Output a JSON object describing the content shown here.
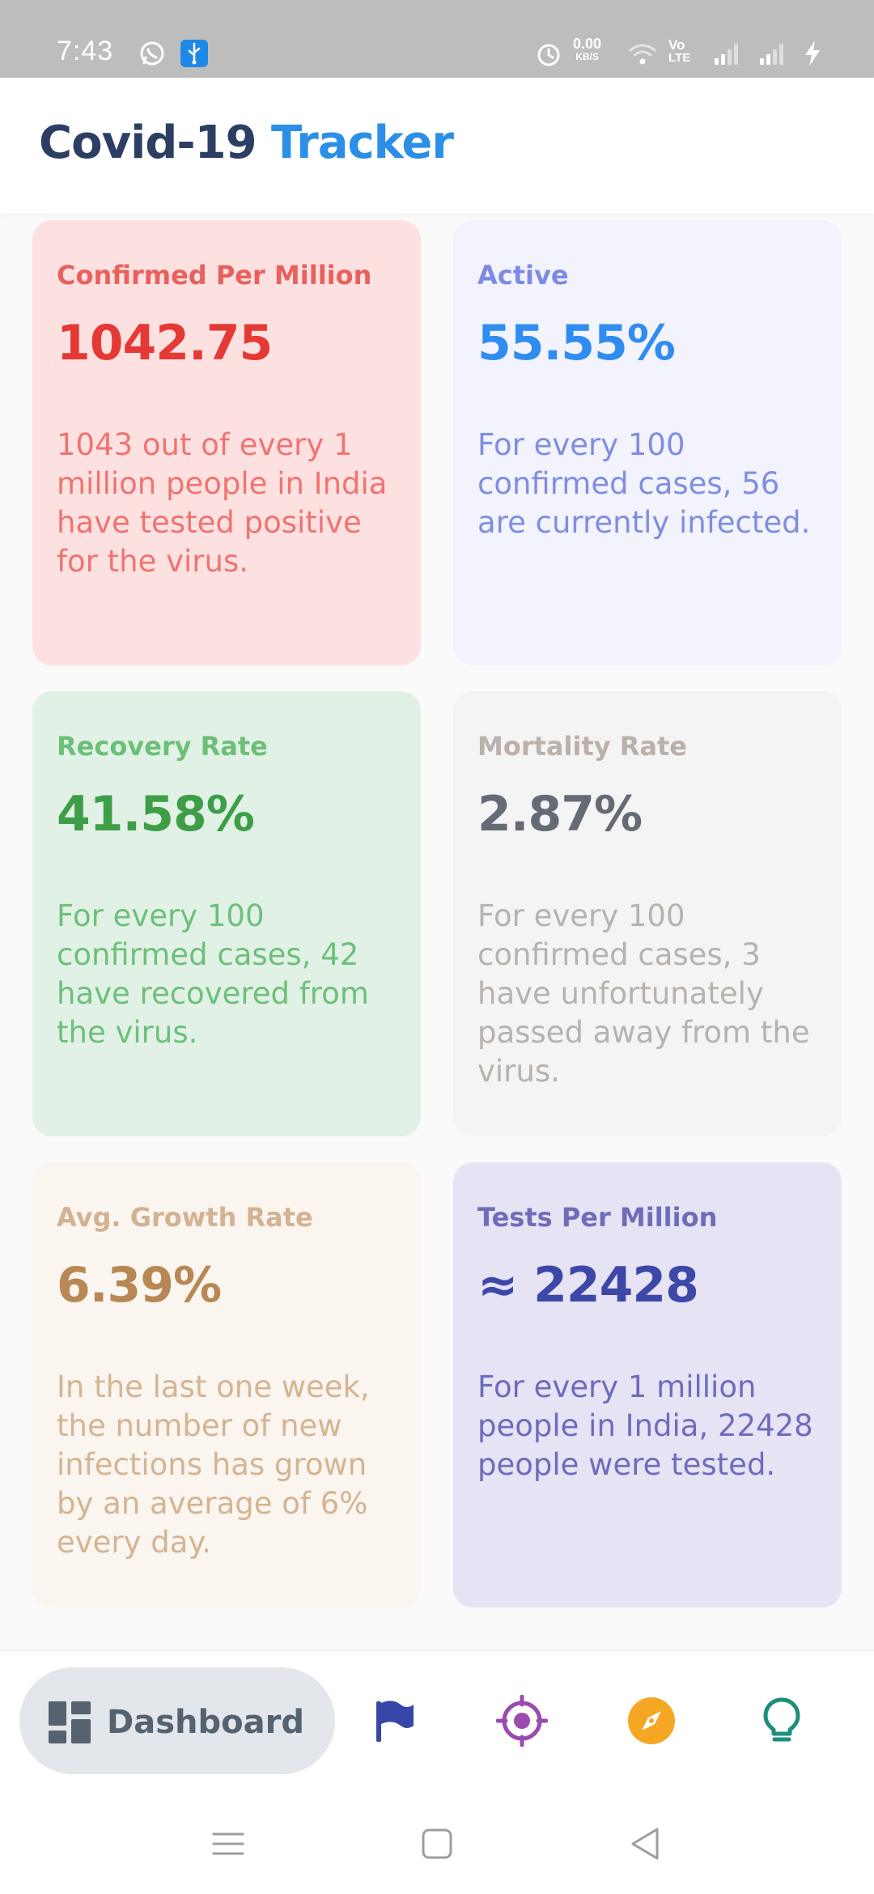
{
  "status_bar": {
    "time": "7:43",
    "speed_value": "0.00",
    "speed_unit": "KB/S",
    "volte_top": "Vo",
    "volte_bottom": "LTE",
    "icons": [
      "whatsapp-icon",
      "usb-debug-icon",
      "alarm-icon",
      "wifi-icon",
      "signal-icon",
      "signal-icon",
      "charging-icon"
    ]
  },
  "header": {
    "title_part1": "Covid-19",
    "title_part2": "Tracker"
  },
  "cards": [
    {
      "title": "Confirmed Per Million",
      "value": "1042.75",
      "description": "1043 out of every 1 million people in India have tested positive for the virus."
    },
    {
      "title": "Active",
      "value": "55.55%",
      "description": "For every 100 confirmed cases, 56 are currently infected."
    },
    {
      "title": "Recovery Rate",
      "value": "41.58%",
      "description": "For every 100 confirmed cases, 42 have recovered from the virus."
    },
    {
      "title": "Mortality Rate",
      "value": "2.87%",
      "description": "For every 100 confirmed cases, 3 have unfortunately passed away from the virus."
    },
    {
      "title": "Avg. Growth Rate",
      "value": "6.39%",
      "description": "In the last one week, the number of new infections has grown by an average of 6% every day."
    },
    {
      "title": "Tests Per Million",
      "value": "≈ 22428",
      "description": "For every 1 million people in India, 22428 people were tested."
    }
  ],
  "bottom_nav": {
    "items": [
      {
        "label": "Dashboard",
        "icon": "dashboard-icon",
        "active": true,
        "color": "#54636f"
      },
      {
        "icon": "flag-icon",
        "color": "#3846a8"
      },
      {
        "icon": "target-icon",
        "color": "#9b4ab0"
      },
      {
        "icon": "compass-icon",
        "color": "#f5a623"
      },
      {
        "icon": "lightbulb-icon",
        "color": "#1c8f7a"
      }
    ]
  },
  "system_nav": {
    "icons": [
      "menu-icon",
      "home-icon",
      "back-icon"
    ]
  }
}
